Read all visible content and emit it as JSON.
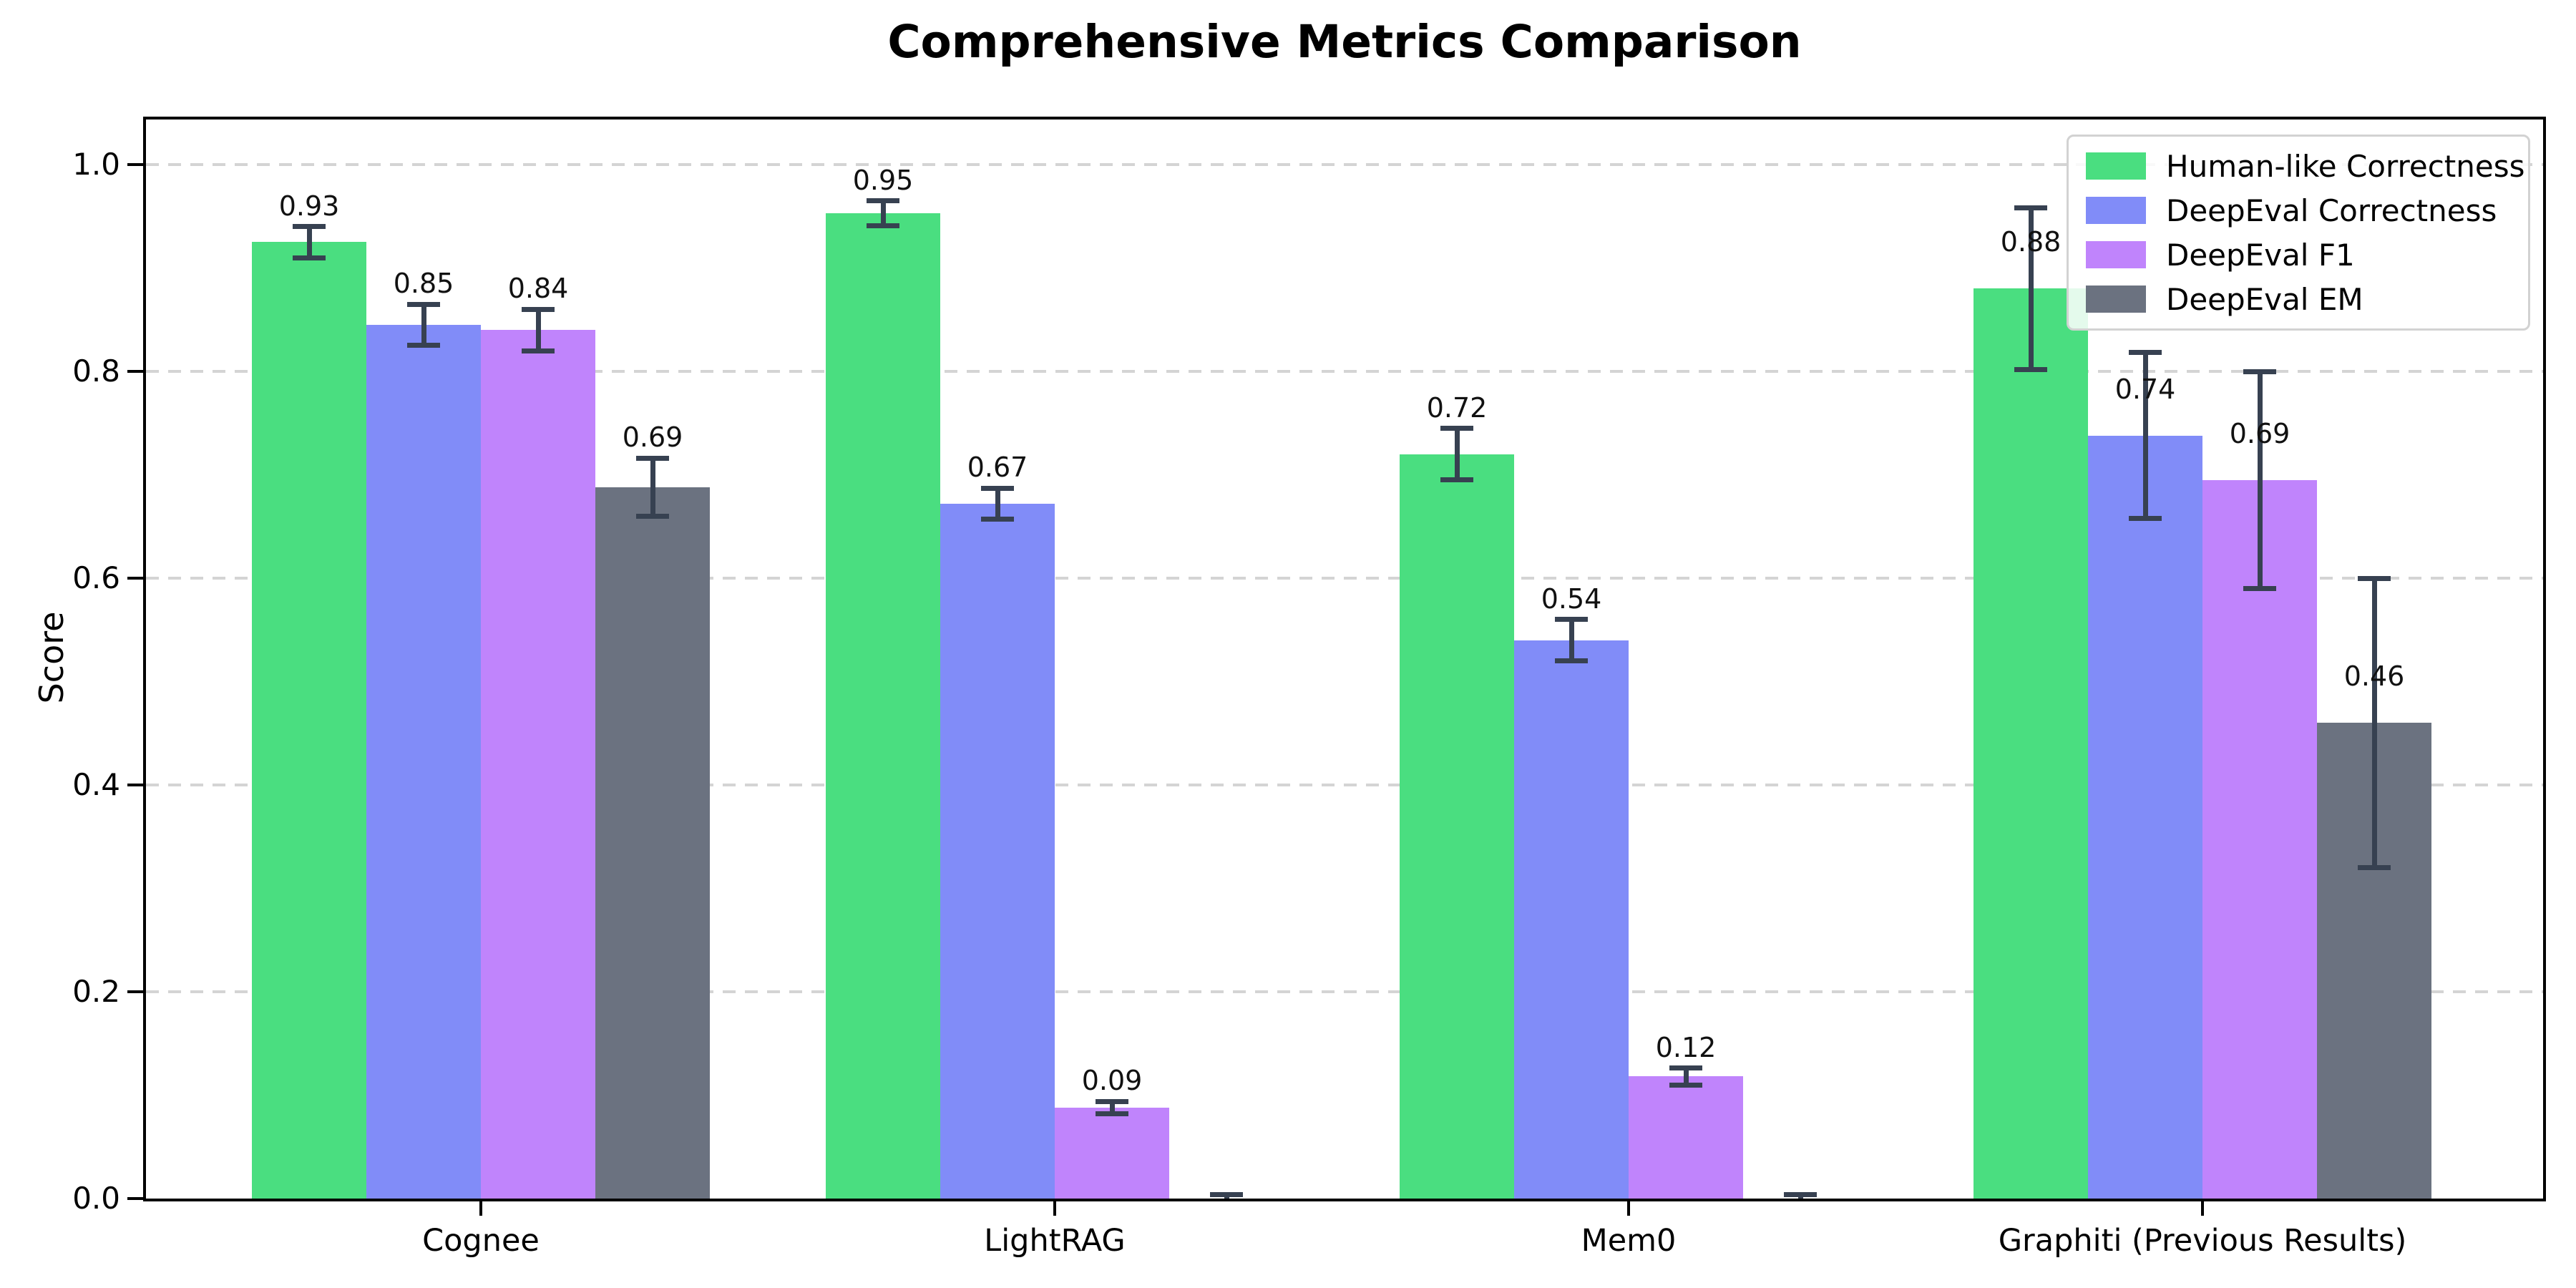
{
  "chart_data": {
    "type": "bar",
    "title": "Comprehensive Metrics Comparison",
    "xlabel": "",
    "ylabel": "Score",
    "categories": [
      "Cognee",
      "LightRAG",
      "Mem0",
      "Graphiti (Previous Results)"
    ],
    "series": [
      {
        "name": "Human-like Correctness",
        "color": "#4ade80",
        "values": [
          0.925,
          0.953,
          0.72,
          0.88
        ],
        "errors": [
          0.015,
          0.012,
          0.025,
          0.078
        ],
        "labels": [
          "0.93",
          "0.95",
          "0.72",
          "0.88"
        ]
      },
      {
        "name": "DeepEval Correctness",
        "color": "#818cf8",
        "values": [
          0.845,
          0.672,
          0.54,
          0.738
        ],
        "errors": [
          0.02,
          0.015,
          0.02,
          0.08
        ],
        "labels": [
          "0.85",
          "0.67",
          "0.54",
          "0.74"
        ]
      },
      {
        "name": "DeepEval F1",
        "color": "#c084fc",
        "values": [
          0.84,
          0.088,
          0.118,
          0.695
        ],
        "errors": [
          0.02,
          0.006,
          0.008,
          0.105
        ],
        "labels": [
          "0.84",
          "0.09",
          "0.12",
          "0.69"
        ]
      },
      {
        "name": "DeepEval EM",
        "color": "#6b7280",
        "values": [
          0.688,
          0.0,
          0.0,
          0.46
        ],
        "errors": [
          0.028,
          0.004,
          0.004,
          0.14
        ],
        "labels": [
          "0.69",
          null,
          null,
          "0.46"
        ]
      }
    ],
    "yticks": [
      "0.0",
      "0.2",
      "0.4",
      "0.6",
      "0.8",
      "1.0"
    ],
    "ylim": [
      0.0,
      1.053
    ],
    "grid": "dashed-horizontal",
    "legend_position": "upper-right",
    "error_bar_color": "#374151",
    "grid_color": "#d4d4d4",
    "spine_color": "#000000"
  }
}
